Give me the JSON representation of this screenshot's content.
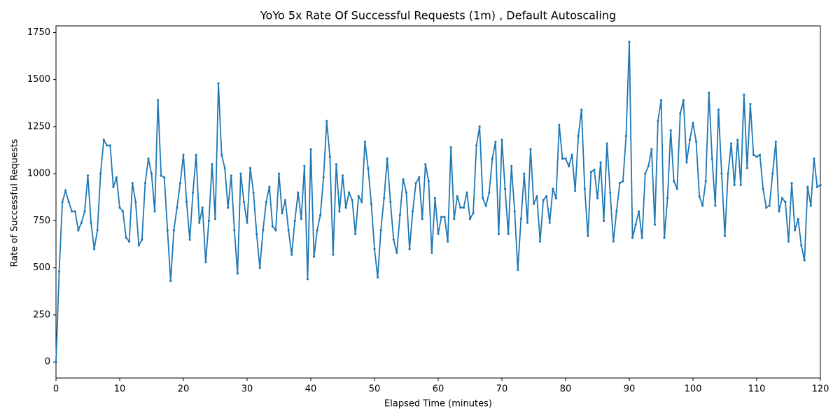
{
  "chart_data": {
    "type": "line",
    "title": "YoYo 5x Rate Of Successful Requests (1m) , Default Autoscaling",
    "xlabel": "Elapsed Time (minutes)",
    "ylabel": "Rate of Successful Requests",
    "color": "#1f77b4",
    "xlim": [
      0,
      120
    ],
    "xticks": [
      0,
      10,
      20,
      30,
      40,
      50,
      60,
      70,
      80,
      90,
      100,
      110,
      120
    ],
    "ylim": [
      -85,
      1785
    ],
    "yticks": [
      0,
      250,
      500,
      750,
      1000,
      1250,
      1500,
      1750
    ],
    "x": [
      0,
      0.5,
      1,
      1.5,
      2,
      2.5,
      3,
      3.5,
      4,
      4.5,
      5,
      5.5,
      6,
      6.5,
      7,
      7.5,
      8,
      8.5,
      9,
      9.5,
      10,
      10.5,
      11,
      11.5,
      12,
      12.5,
      13,
      13.5,
      14,
      14.5,
      15,
      15.5,
      16,
      16.5,
      17,
      17.5,
      18,
      18.5,
      19,
      19.5,
      20,
      20.5,
      21,
      21.5,
      22,
      22.5,
      23,
      23.5,
      24,
      24.5,
      25,
      25.5,
      26,
      26.5,
      27,
      27.5,
      28,
      28.5,
      29,
      29.5,
      30,
      30.5,
      31,
      31.5,
      32,
      32.5,
      33,
      33.5,
      34,
      34.5,
      35,
      35.5,
      36,
      36.5,
      37,
      37.5,
      38,
      38.5,
      39,
      39.5,
      40,
      40.5,
      41,
      41.5,
      42,
      42.5,
      43,
      43.5,
      44,
      44.5,
      45,
      45.5,
      46,
      46.5,
      47,
      47.5,
      48,
      48.5,
      49,
      49.5,
      50,
      50.5,
      51,
      51.5,
      52,
      52.5,
      53,
      53.5,
      54,
      54.5,
      55,
      55.5,
      56,
      56.5,
      57,
      57.5,
      58,
      58.5,
      59,
      59.5,
      60,
      60.5,
      61,
      61.5,
      62,
      62.5,
      63,
      63.5,
      64,
      64.5,
      65,
      65.5,
      66,
      66.5,
      67,
      67.5,
      68,
      68.5,
      69,
      69.5,
      70,
      70.5,
      71,
      71.5,
      72,
      72.5,
      73,
      73.5,
      74,
      74.5,
      75,
      75.5,
      76,
      76.5,
      77,
      77.5,
      78,
      78.5,
      79,
      79.5,
      80,
      80.5,
      81,
      81.5,
      82,
      82.5,
      83,
      83.5,
      84,
      84.5,
      85,
      85.5,
      86,
      86.5,
      87,
      87.5,
      88,
      88.5,
      89,
      89.5,
      90,
      90.5,
      91,
      91.5,
      92,
      92.5,
      93,
      93.5,
      94,
      94.5,
      95,
      95.5,
      96,
      96.5,
      97,
      97.5,
      98,
      98.5,
      99,
      99.5,
      100,
      100.5,
      101,
      101.5,
      102,
      102.5,
      103,
      103.5,
      104,
      104.5,
      105,
      105.5,
      106,
      106.5,
      107,
      107.5,
      108,
      108.5,
      109,
      109.5,
      110,
      110.5,
      111,
      111.5,
      112,
      112.5,
      113,
      113.5,
      114,
      114.5,
      115,
      115.5,
      116,
      116.5,
      117,
      117.5,
      118,
      118.5,
      119,
      119.5,
      120
    ],
    "values": [
      0,
      480,
      850,
      910,
      850,
      800,
      800,
      700,
      740,
      800,
      990,
      740,
      600,
      700,
      1000,
      1180,
      1150,
      1150,
      930,
      980,
      820,
      800,
      660,
      640,
      950,
      850,
      620,
      650,
      950,
      1080,
      1000,
      800,
      1390,
      990,
      980,
      700,
      430,
      700,
      820,
      950,
      1100,
      850,
      650,
      900,
      1100,
      740,
      820,
      530,
      750,
      1050,
      760,
      1480,
      1100,
      1030,
      820,
      990,
      700,
      470,
      1000,
      850,
      740,
      1030,
      900,
      680,
      500,
      700,
      850,
      930,
      720,
      700,
      1000,
      790,
      860,
      700,
      570,
      750,
      900,
      760,
      1040,
      440,
      1130,
      560,
      700,
      780,
      980,
      1280,
      1090,
      570,
      1050,
      800,
      990,
      820,
      900,
      860,
      680,
      880,
      850,
      1170,
      1030,
      840,
      600,
      450,
      700,
      870,
      1080,
      850,
      650,
      580,
      780,
      970,
      900,
      600,
      800,
      950,
      980,
      760,
      1050,
      960,
      580,
      870,
      680,
      770,
      770,
      640,
      1140,
      760,
      880,
      820,
      820,
      900,
      760,
      790,
      1150,
      1250,
      870,
      830,
      900,
      1080,
      1170,
      680,
      1180,
      920,
      680,
      1040,
      800,
      490,
      760,
      1000,
      740,
      1130,
      840,
      880,
      640,
      860,
      880,
      740,
      920,
      870,
      1260,
      1080,
      1080,
      1040,
      1100,
      910,
      1200,
      1340,
      920,
      670,
      1010,
      1020,
      870,
      1060,
      750,
      1160,
      900,
      640,
      800,
      950,
      960,
      1200,
      1700,
      660,
      730,
      800,
      660,
      1000,
      1040,
      1130,
      730,
      1280,
      1390,
      660,
      870,
      1230,
      960,
      920,
      1320,
      1390,
      1060,
      1180,
      1270,
      1170,
      880,
      830,
      960,
      1430,
      1080,
      830,
      1340,
      1000,
      670,
      1000,
      1160,
      940,
      1180,
      940,
      1420,
      1030,
      1370,
      1100,
      1090,
      1100,
      920,
      820,
      830,
      1000,
      1170,
      800,
      870,
      850,
      640,
      950,
      700,
      760,
      620,
      540,
      930,
      830,
      1080,
      930,
      940
    ]
  }
}
